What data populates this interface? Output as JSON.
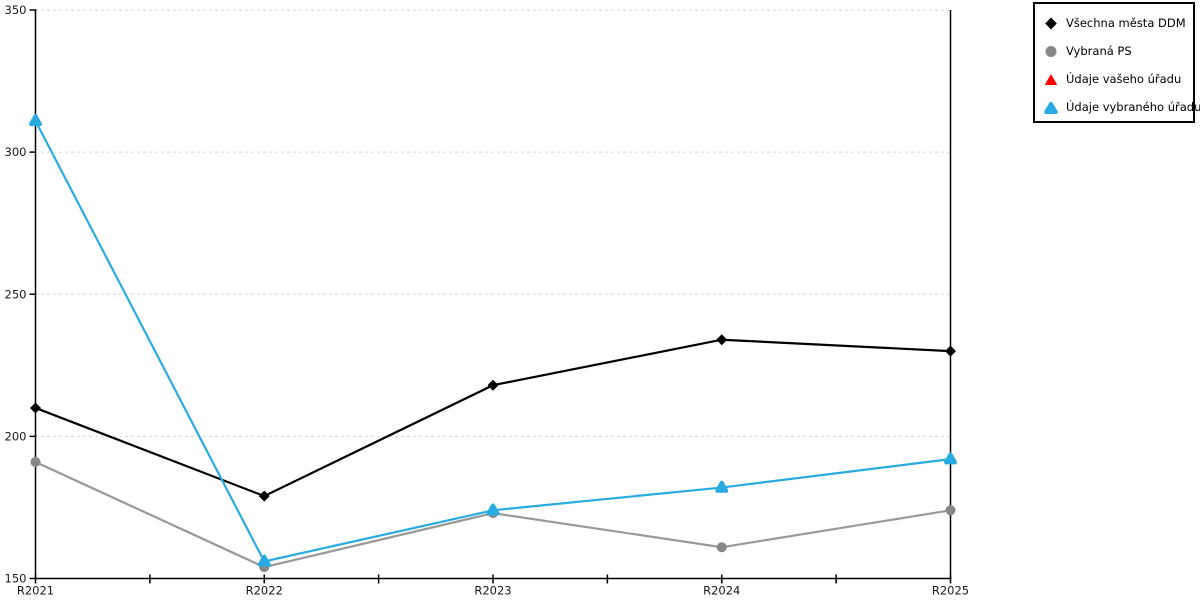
{
  "chart_data": {
    "type": "line",
    "title": "",
    "xlabel": "",
    "ylabel": "",
    "categories": [
      "R2021",
      "R2022",
      "R2023",
      "R2024",
      "R2025"
    ],
    "series": [
      {
        "name": "Všechna města DDM",
        "color": "#000000",
        "marker": "diamond",
        "marker_color": "#000000",
        "values": [
          210,
          179,
          218,
          234,
          230
        ]
      },
      {
        "name": "Vybraná PS",
        "color": "#999999",
        "marker": "circle",
        "marker_color": "#878787",
        "values": [
          191,
          154,
          173,
          161,
          174
        ]
      },
      {
        "name": "Údaje vašeho úřadu",
        "color": "#ff0000",
        "marker": "triangle",
        "marker_color": "#ff0000",
        "values": []
      },
      {
        "name": "Údaje vybraného úřadu",
        "color": "#29abe2",
        "marker": "triangle-rounded",
        "marker_color": "#29abe2",
        "values": [
          311,
          156,
          174,
          182,
          192
        ]
      }
    ],
    "yticks": [
      150,
      200,
      250,
      300,
      350
    ],
    "ylim": [
      150,
      350
    ],
    "grid": "horizontal-dotted",
    "gridline_color": "#c3c3c3",
    "axis_color": "#000000",
    "legend_position": "top-right"
  }
}
